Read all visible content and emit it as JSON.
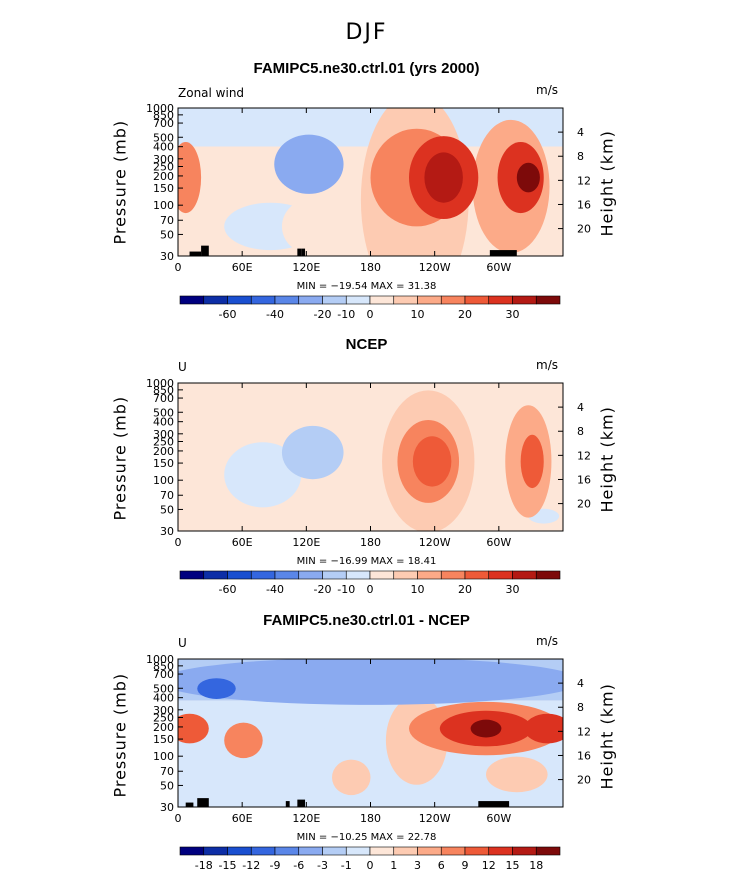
{
  "page_title": "DJF",
  "chart_data": [
    {
      "type": "heatmap",
      "title": "FAMIPC5.ne30.ctrl.01 (yrs 2000)",
      "left_label": "Zonal wind",
      "units": "m/s",
      "ylabel": "Pressure (mb)",
      "ylabel_right": "Height (km)",
      "pressure_ticks": [
        "30",
        "50",
        "70",
        "100",
        "150",
        "200",
        "250",
        "300",
        "400",
        "500",
        "700",
        "850",
        "1000"
      ],
      "height_ticks": [
        "20",
        "16",
        "12",
        "8",
        "4"
      ],
      "lon_ticks": [
        "0",
        "60E",
        "120E",
        "180",
        "120W",
        "60W"
      ],
      "stats": "MIN = −19.54   MAX =  31.38",
      "colorbar_labels": [
        "-60",
        "-40",
        "-20",
        "-10",
        "0",
        "10",
        "20",
        "30"
      ],
      "colors": [
        "#00007f",
        "#0d2ea6",
        "#1a4fd0",
        "#3466df",
        "#5a86e8",
        "#8aaaf0",
        "#b4cdf5",
        "#d7e7fb",
        "#fde6d8",
        "#fdcbb2",
        "#fcaa88",
        "#f7845e",
        "#ee5a38",
        "#dc3220",
        "#b41a14",
        "#7d0a0a"
      ],
      "blobs": [
        {
          "x": 0.615,
          "y": 0.62,
          "rx": 0.14,
          "ry": 0.72,
          "v": 2
        },
        {
          "x": 0.62,
          "y": 0.47,
          "rx": 0.12,
          "ry": 0.33,
          "v": 4
        },
        {
          "x": 0.69,
          "y": 0.47,
          "rx": 0.09,
          "ry": 0.28,
          "v": 6
        },
        {
          "x": 0.69,
          "y": 0.47,
          "rx": 0.05,
          "ry": 0.17,
          "v": 7
        },
        {
          "x": 0.865,
          "y": 0.53,
          "rx": 0.1,
          "ry": 0.45,
          "v": 3
        },
        {
          "x": 0.89,
          "y": 0.47,
          "rx": 0.06,
          "ry": 0.24,
          "v": 6
        },
        {
          "x": 0.91,
          "y": 0.47,
          "rx": 0.03,
          "ry": 0.1,
          "v": 8
        },
        {
          "x": 0.02,
          "y": 0.47,
          "rx": 0.04,
          "ry": 0.24,
          "v": 4
        },
        {
          "x": 0.34,
          "y": 0.38,
          "rx": 0.09,
          "ry": 0.2,
          "v": -3
        },
        {
          "x": 0.24,
          "y": 0.8,
          "rx": 0.12,
          "ry": 0.16,
          "v": -1
        },
        {
          "x": 0.34,
          "y": 0.8,
          "rx": 0.07,
          "ry": 0.18,
          "v": 1
        }
      ],
      "background_value": -1,
      "band": {
        "value": 1,
        "top": 0.26
      },
      "topo": [
        [
          0.03,
          0.06,
          0.03
        ],
        [
          0.06,
          0.08,
          0.07
        ],
        [
          0.31,
          0.32,
          0.05
        ],
        [
          0.32,
          0.33,
          0.05
        ],
        [
          0.81,
          0.88,
          0.04
        ]
      ]
    },
    {
      "type": "heatmap",
      "title": "NCEP",
      "left_label": "U",
      "units": "m/s",
      "ylabel": "Pressure (mb)",
      "ylabel_right": "Height (km)",
      "pressure_ticks": [
        "30",
        "50",
        "70",
        "100",
        "150",
        "200",
        "250",
        "300",
        "400",
        "500",
        "700",
        "850",
        "1000"
      ],
      "height_ticks": [
        "20",
        "16",
        "12",
        "8",
        "4"
      ],
      "lon_ticks": [
        "0",
        "60E",
        "120E",
        "180",
        "120W",
        "60W"
      ],
      "stats": "MIN = −16.99   MAX =  18.41",
      "colorbar_labels": [
        "-60",
        "-40",
        "-20",
        "-10",
        "0",
        "10",
        "20",
        "30"
      ],
      "colors": [
        "#00007f",
        "#0d2ea6",
        "#1a4fd0",
        "#3466df",
        "#5a86e8",
        "#8aaaf0",
        "#b4cdf5",
        "#d7e7fb",
        "#fde6d8",
        "#fdcbb2",
        "#fcaa88",
        "#f7845e",
        "#ee5a38",
        "#dc3220",
        "#b41a14",
        "#7d0a0a"
      ],
      "blobs": [
        {
          "x": 0.65,
          "y": 0.53,
          "rx": 0.12,
          "ry": 0.48,
          "v": 2
        },
        {
          "x": 0.65,
          "y": 0.53,
          "rx": 0.08,
          "ry": 0.28,
          "v": 4
        },
        {
          "x": 0.66,
          "y": 0.53,
          "rx": 0.05,
          "ry": 0.17,
          "v": 5
        },
        {
          "x": 0.91,
          "y": 0.53,
          "rx": 0.06,
          "ry": 0.38,
          "v": 3
        },
        {
          "x": 0.92,
          "y": 0.53,
          "rx": 0.03,
          "ry": 0.18,
          "v": 5
        },
        {
          "x": 0.35,
          "y": 0.47,
          "rx": 0.08,
          "ry": 0.18,
          "v": -2
        },
        {
          "x": 0.15,
          "y": 0.13,
          "rx": 0.06,
          "ry": 0.06,
          "v": 1
        },
        {
          "x": 0.22,
          "y": 0.62,
          "rx": 0.1,
          "ry": 0.22,
          "v": -1
        },
        {
          "x": 0.43,
          "y": 0.9,
          "rx": 0.06,
          "ry": 0.06,
          "v": 1
        },
        {
          "x": 0.95,
          "y": 0.9,
          "rx": 0.04,
          "ry": 0.05,
          "v": -1
        }
      ],
      "background_value": 0,
      "band": {
        "value": 1,
        "top": 0.0
      },
      "topo": []
    },
    {
      "type": "heatmap",
      "title": "FAMIPC5.ne30.ctrl.01 - NCEP",
      "left_label": "U",
      "units": "m/s",
      "ylabel": "Pressure (mb)",
      "ylabel_right": "Height (km)",
      "pressure_ticks": [
        "30",
        "50",
        "70",
        "100",
        "150",
        "200",
        "250",
        "300",
        "400",
        "500",
        "700",
        "850",
        "1000"
      ],
      "height_ticks": [
        "20",
        "16",
        "12",
        "8",
        "4"
      ],
      "lon_ticks": [
        "0",
        "60E",
        "120E",
        "180",
        "120W",
        "60W"
      ],
      "stats": "MIN = −10.25   MAX =  22.78",
      "colorbar_labels": [
        "-18",
        "-15",
        "-12",
        "-9",
        "-6",
        "-3",
        "-1",
        "0",
        "1",
        "3",
        "6",
        "9",
        "12",
        "15",
        "18"
      ],
      "colors": [
        "#00007f",
        "#0d2ea6",
        "#1a4fd0",
        "#3466df",
        "#5a86e8",
        "#8aaaf0",
        "#b4cdf5",
        "#d7e7fb",
        "#fde6d8",
        "#fdcbb2",
        "#fcaa88",
        "#f7845e",
        "#ee5a38",
        "#dc3220",
        "#b41a14",
        "#7d0a0a"
      ],
      "blobs": [
        {
          "x": 0.5,
          "y": 0.15,
          "rx": 0.55,
          "ry": 0.16,
          "v": -3
        },
        {
          "x": 0.1,
          "y": 0.2,
          "rx": 0.05,
          "ry": 0.07,
          "v": -5
        },
        {
          "x": 0.8,
          "y": 0.47,
          "rx": 0.2,
          "ry": 0.18,
          "v": 4
        },
        {
          "x": 0.8,
          "y": 0.47,
          "rx": 0.12,
          "ry": 0.12,
          "v": 6
        },
        {
          "x": 0.8,
          "y": 0.47,
          "rx": 0.04,
          "ry": 0.06,
          "v": 8
        },
        {
          "x": 0.96,
          "y": 0.47,
          "rx": 0.06,
          "ry": 0.1,
          "v": 6
        },
        {
          "x": 0.03,
          "y": 0.47,
          "rx": 0.05,
          "ry": 0.1,
          "v": 5
        },
        {
          "x": 0.17,
          "y": 0.55,
          "rx": 0.05,
          "ry": 0.12,
          "v": 4
        },
        {
          "x": 0.35,
          "y": 0.65,
          "rx": 0.07,
          "ry": 0.2,
          "v": -1
        },
        {
          "x": 0.55,
          "y": 0.7,
          "rx": 0.04,
          "ry": 0.15,
          "v": -1
        },
        {
          "x": 0.62,
          "y": 0.55,
          "rx": 0.08,
          "ry": 0.3,
          "v": 2
        },
        {
          "x": 0.45,
          "y": 0.8,
          "rx": 0.05,
          "ry": 0.12,
          "v": 2
        },
        {
          "x": 0.88,
          "y": 0.78,
          "rx": 0.08,
          "ry": 0.12,
          "v": 2
        }
      ],
      "background_value": 1,
      "band": {
        "value": -1,
        "top": 0.0
      },
      "topo": [
        [
          0.02,
          0.04,
          0.03
        ],
        [
          0.05,
          0.08,
          0.06
        ],
        [
          0.28,
          0.29,
          0.04
        ],
        [
          0.31,
          0.33,
          0.05
        ],
        [
          0.78,
          0.86,
          0.04
        ]
      ]
    }
  ]
}
